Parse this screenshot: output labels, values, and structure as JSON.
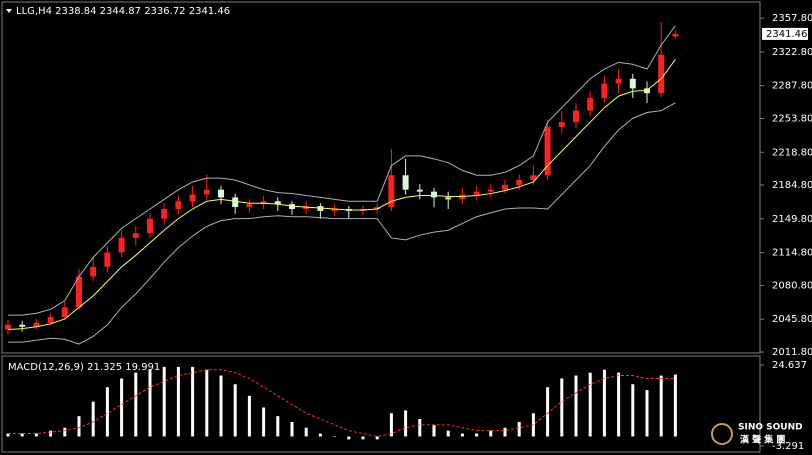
{
  "chart_data": [
    {
      "type": "candlestick",
      "title": "LLG,H4  2338.84 2344.87 2336.72 2341.46",
      "ohlc": [
        [
          2035,
          2045,
          2030,
          2040
        ],
        [
          2040,
          2044,
          2033,
          2038
        ],
        [
          2038,
          2046,
          2035,
          2042
        ],
        [
          2042,
          2052,
          2040,
          2048
        ],
        [
          2048,
          2064,
          2045,
          2058
        ],
        [
          2058,
          2098,
          2055,
          2090
        ],
        [
          2090,
          2110,
          2085,
          2100
        ],
        [
          2100,
          2122,
          2094,
          2115
        ],
        [
          2115,
          2138,
          2110,
          2130
        ],
        [
          2130,
          2142,
          2122,
          2135
        ],
        [
          2135,
          2156,
          2130,
          2150
        ],
        [
          2150,
          2166,
          2144,
          2160
        ],
        [
          2160,
          2174,
          2154,
          2168
        ],
        [
          2168,
          2184,
          2162,
          2175
        ],
        [
          2175,
          2196,
          2170,
          2180
        ],
        [
          2180,
          2184,
          2165,
          2172
        ],
        [
          2172,
          2176,
          2155,
          2162
        ],
        [
          2162,
          2170,
          2156,
          2165
        ],
        [
          2165,
          2174,
          2160,
          2168
        ],
        [
          2168,
          2172,
          2158,
          2165
        ],
        [
          2165,
          2168,
          2154,
          2160
        ],
        [
          2160,
          2168,
          2155,
          2163
        ],
        [
          2163,
          2166,
          2150,
          2158
        ],
        [
          2158,
          2165,
          2153,
          2160
        ],
        [
          2160,
          2163,
          2150,
          2158
        ],
        [
          2158,
          2164,
          2154,
          2160
        ],
        [
          2160,
          2166,
          2155,
          2162
        ],
        [
          2162,
          2222,
          2158,
          2195
        ],
        [
          2195,
          2212,
          2175,
          2180
        ],
        [
          2180,
          2186,
          2170,
          2178
        ],
        [
          2178,
          2182,
          2162,
          2172
        ],
        [
          2172,
          2178,
          2160,
          2170
        ],
        [
          2170,
          2182,
          2165,
          2175
        ],
        [
          2175,
          2184,
          2170,
          2178
        ],
        [
          2178,
          2186,
          2172,
          2180
        ],
        [
          2180,
          2190,
          2176,
          2185
        ],
        [
          2185,
          2196,
          2180,
          2190
        ],
        [
          2190,
          2205,
          2185,
          2195
        ],
        [
          2195,
          2252,
          2190,
          2245
        ],
        [
          2245,
          2262,
          2238,
          2250
        ],
        [
          2250,
          2270,
          2244,
          2262
        ],
        [
          2262,
          2282,
          2256,
          2275
        ],
        [
          2275,
          2298,
          2270,
          2290
        ],
        [
          2290,
          2305,
          2280,
          2295
        ],
        [
          2295,
          2300,
          2275,
          2285
        ],
        [
          2285,
          2292,
          2270,
          2280
        ],
        [
          2280,
          2354,
          2276,
          2320
        ],
        [
          2338.84,
          2344.87,
          2336.72,
          2341.46
        ]
      ],
      "up_color": "#ff2020",
      "down_color": "#d8f8d8",
      "series": [
        {
          "color": "#ffff40",
          "values": [
            2035,
            2036,
            2038,
            2041,
            2046,
            2058,
            2070,
            2085,
            2100,
            2112,
            2125,
            2138,
            2150,
            2160,
            2168,
            2170,
            2168,
            2166,
            2166,
            2165,
            2163,
            2162,
            2161,
            2160,
            2159,
            2159,
            2160,
            2168,
            2172,
            2174,
            2174,
            2173,
            2173,
            2174,
            2176,
            2179,
            2183,
            2188,
            2205,
            2220,
            2235,
            2250,
            2265,
            2277,
            2282,
            2283,
            2295,
            2315
          ]
        },
        {
          "color": "#b0b0b0",
          "values": [
            2050,
            2050,
            2052,
            2056,
            2065,
            2090,
            2110,
            2125,
            2140,
            2150,
            2160,
            2170,
            2180,
            2188,
            2192,
            2192,
            2190,
            2185,
            2180,
            2177,
            2176,
            2174,
            2172,
            2170,
            2168,
            2168,
            2168,
            2205,
            2215,
            2215,
            2212,
            2208,
            2200,
            2195,
            2195,
            2198,
            2205,
            2215,
            2250,
            2265,
            2280,
            2295,
            2305,
            2312,
            2310,
            2305,
            2330,
            2350
          ]
        },
        {
          "color": "#b0b0b0",
          "values": [
            2022,
            2022,
            2024,
            2026,
            2025,
            2020,
            2028,
            2040,
            2058,
            2072,
            2088,
            2105,
            2120,
            2132,
            2142,
            2148,
            2150,
            2150,
            2152,
            2153,
            2152,
            2152,
            2151,
            2150,
            2150,
            2150,
            2150,
            2130,
            2128,
            2133,
            2136,
            2138,
            2145,
            2152,
            2156,
            2160,
            2161,
            2161,
            2160,
            2175,
            2190,
            2205,
            2225,
            2242,
            2254,
            2260,
            2262,
            2270
          ]
        }
      ],
      "ylim": [
        2010.75,
        2373.5
      ],
      "yticks": [
        {
          "value": 2357.8,
          "label": "2357.80"
        },
        {
          "value": 2322.8,
          "label": "2322.80"
        },
        {
          "value": 2287.8,
          "label": "2287.80"
        },
        {
          "value": 2253.8,
          "label": "2253.80"
        },
        {
          "value": 2218.8,
          "label": "2218.80"
        },
        {
          "value": 2184.8,
          "label": "2184.80"
        },
        {
          "value": 2149.8,
          "label": "2149.80"
        },
        {
          "value": 2114.8,
          "label": "2114.80"
        },
        {
          "value": 2080.8,
          "label": "2080.80"
        },
        {
          "value": 2045.8,
          "label": "2045.80"
        },
        {
          "value": 2011.8,
          "label": "2011.80"
        }
      ],
      "price_tag": {
        "value": 2341.46,
        "label": "2341.46"
      }
    },
    {
      "type": "macd",
      "title": "MACD(12,26,9) 21.325 19.991",
      "series": [
        {
          "color": "#ffffff",
          "values": [
            1,
            1,
            1,
            2,
            3,
            7,
            12,
            17,
            20,
            22,
            23,
            24,
            24,
            24,
            23,
            21,
            18,
            14,
            10,
            7,
            5,
            3,
            1,
            0,
            -1,
            -1,
            -1,
            8,
            9,
            6,
            4,
            2,
            1,
            1,
            2,
            3,
            5,
            8,
            17,
            20,
            21,
            22,
            23,
            22,
            18,
            16,
            21,
            21.325
          ]
        },
        {
          "color": "#ff3030",
          "values": [
            1,
            1,
            1,
            1.5,
            2,
            3,
            5,
            8,
            11,
            14,
            17,
            19,
            21,
            22,
            23,
            23,
            22,
            20,
            17,
            14,
            11,
            8,
            6,
            4,
            2,
            1,
            0,
            1,
            3,
            4,
            4,
            4,
            3,
            2,
            2,
            2,
            3,
            4,
            8,
            12,
            15,
            18,
            20,
            21,
            21,
            20,
            20,
            19.991
          ]
        }
      ],
      "ylim": [
        -5.36,
        27.4
      ],
      "yticks": [
        24.637,
        -3.291
      ]
    }
  ],
  "watermark": {
    "brand": "SINO SOUND",
    "sub": "漢 聲 集 團"
  }
}
